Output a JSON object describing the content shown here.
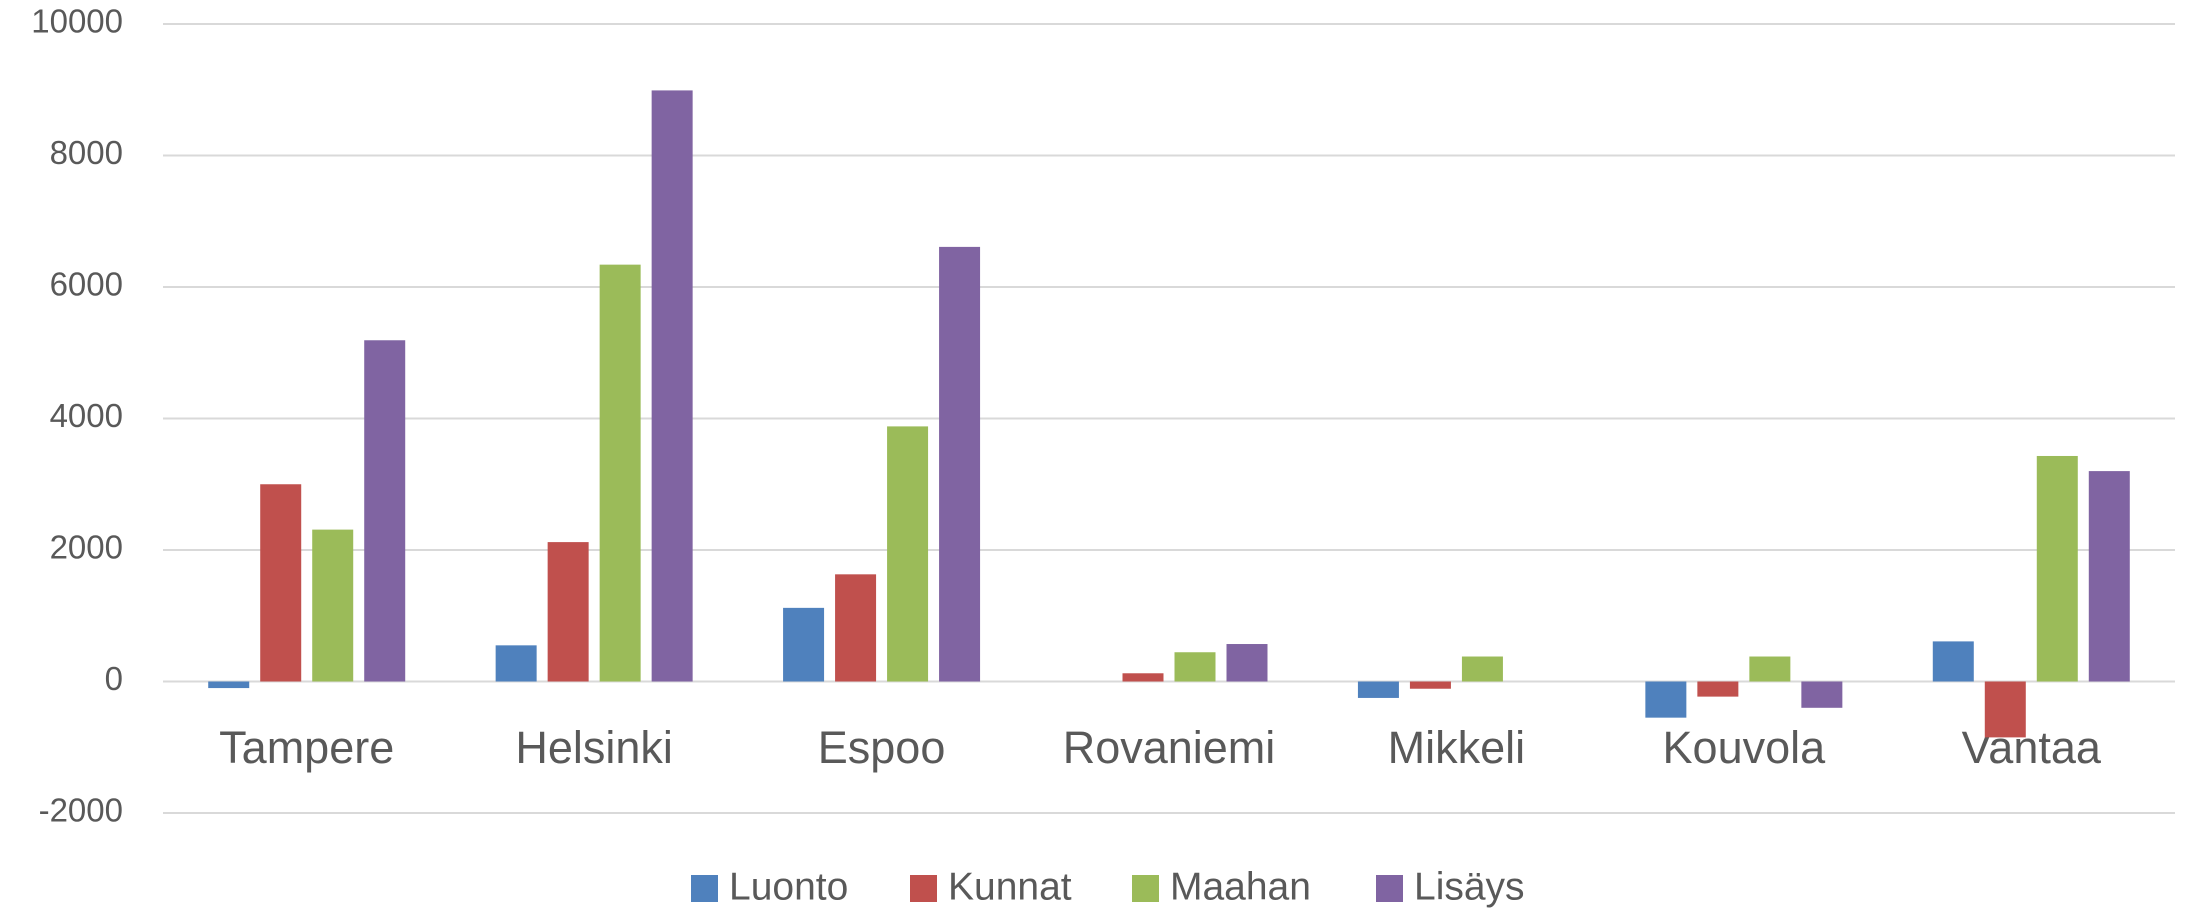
{
  "chart_data": {
    "type": "bar",
    "categories": [
      "Tampere",
      "Helsinki",
      "Espoo",
      "Rovaniemi",
      "Mikkeli",
      "Kouvola",
      "Vantaa"
    ],
    "series": [
      {
        "name": "Luonto",
        "color": "#4f81bd",
        "values": [
          -100,
          550,
          1120,
          0,
          -250,
          -550,
          610
        ]
      },
      {
        "name": "Kunnat",
        "color": "#c0504d",
        "values": [
          3000,
          2120,
          1630,
          125,
          -110,
          -230,
          -850
        ]
      },
      {
        "name": "Maahan",
        "color": "#9bbb59",
        "values": [
          2310,
          6340,
          3880,
          445,
          380,
          380,
          3430
        ]
      },
      {
        "name": "Lisäys",
        "color": "#8064a2",
        "values": [
          5190,
          8990,
          6610,
          570,
          0,
          -400,
          3200
        ]
      }
    ],
    "ylim": [
      -2000,
      10000
    ],
    "yticks": [
      -2000,
      0,
      2000,
      4000,
      6000,
      8000,
      10000
    ],
    "grid": true,
    "legend": "bottom"
  }
}
